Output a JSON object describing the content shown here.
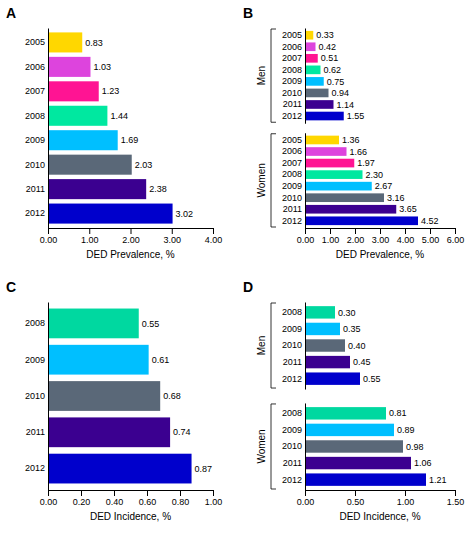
{
  "chart_data": [
    {
      "type": "bar",
      "orientation": "horizontal",
      "title": "A",
      "data_labels": true,
      "categories": [
        "2005",
        "2006",
        "2007",
        "2008",
        "2009",
        "2010",
        "2011",
        "2012"
      ],
      "values": [
        0.83,
        1.03,
        1.23,
        1.44,
        1.69,
        2.03,
        2.38,
        3.02
      ],
      "colors": [
        "#FFD700",
        "#DD44DD",
        "#FF1493",
        "#00E8A0",
        "#00BFFF",
        "#5A6878",
        "#3B0090",
        "#0000CC"
      ],
      "xlabel": "DED Prevalence, %",
      "xlim": [
        0,
        4.0
      ],
      "xticks": [
        {
          "value": 0,
          "label": "0.00"
        },
        {
          "value": 1,
          "label": "1.00"
        },
        {
          "value": 2,
          "label": "2.00"
        },
        {
          "value": 3,
          "label": "3.00"
        },
        {
          "value": 4,
          "label": "4.00"
        }
      ]
    },
    {
      "type": "bar",
      "orientation": "horizontal",
      "title": "B",
      "data_labels": true,
      "categories": [
        "2005",
        "2006",
        "2007",
        "2008",
        "2009",
        "2010",
        "2011",
        "2012"
      ],
      "series": [
        {
          "name": "Men",
          "values": [
            0.33,
            0.42,
            0.51,
            0.62,
            0.75,
            0.94,
            1.14,
            1.55
          ],
          "value_labels": [
            "0.33",
            "0.42",
            "0.51",
            "0.62",
            "0.75",
            "0.94",
            "1.14",
            "1.55"
          ]
        },
        {
          "name": "Women",
          "values": [
            1.36,
            1.66,
            1.97,
            2.3,
            2.67,
            3.16,
            3.65,
            4.52
          ],
          "value_labels": [
            "1.36",
            "1.66",
            "1.97",
            "2.30",
            "2.67",
            "3.16",
            "3.65",
            "4.52"
          ]
        }
      ],
      "colors": [
        "#FFD700",
        "#DD44DD",
        "#FF1493",
        "#00E8A0",
        "#00BFFF",
        "#5A6878",
        "#3B0090",
        "#0000CC"
      ],
      "xlabel": "DED Prevalence, %",
      "xlim": [
        0,
        6.0
      ],
      "xticks": [
        {
          "value": 0,
          "label": "0.00"
        },
        {
          "value": 1,
          "label": "1.00"
        },
        {
          "value": 2,
          "label": "2.00"
        },
        {
          "value": 3,
          "label": "3.00"
        },
        {
          "value": 4,
          "label": "4.00"
        },
        {
          "value": 5,
          "label": "5.00"
        },
        {
          "value": 6,
          "label": "6.00"
        }
      ]
    },
    {
      "type": "bar",
      "orientation": "horizontal",
      "title": "C",
      "data_labels": true,
      "categories": [
        "2008",
        "2009",
        "2010",
        "2011",
        "2012"
      ],
      "values": [
        0.55,
        0.61,
        0.68,
        0.74,
        0.87
      ],
      "colors": [
        "#00D8A0",
        "#00BFFF",
        "#5A6878",
        "#3B0090",
        "#0000CC"
      ],
      "xlabel": "DED Incidence, %",
      "xlim": [
        0,
        1.0
      ],
      "xticks": [
        {
          "value": 0,
          "label": "0.00"
        },
        {
          "value": 0.2,
          "label": "0.20"
        },
        {
          "value": 0.4,
          "label": "0.40"
        },
        {
          "value": 0.6,
          "label": "0.60"
        },
        {
          "value": 0.8,
          "label": "0.80"
        },
        {
          "value": 1,
          "label": "1.00"
        }
      ]
    },
    {
      "type": "bar",
      "orientation": "horizontal",
      "title": "D",
      "data_labels": true,
      "categories": [
        "2008",
        "2009",
        "2010",
        "2011",
        "2012"
      ],
      "series": [
        {
          "name": "Men",
          "values": [
            0.3,
            0.35,
            0.4,
            0.45,
            0.55
          ],
          "value_labels": [
            "0.30",
            "0.35",
            "0.40",
            "0.45",
            "0.55"
          ]
        },
        {
          "name": "Women",
          "values": [
            0.81,
            0.89,
            0.98,
            1.06,
            1.21
          ],
          "value_labels": [
            "0.81",
            "0.89",
            "0.98",
            "1.06",
            "1.21"
          ]
        }
      ],
      "colors": [
        "#00D8A0",
        "#00BFFF",
        "#5A6878",
        "#3B0090",
        "#0000CC"
      ],
      "xlabel": "DED Incidence, %",
      "xlim": [
        0,
        1.5
      ],
      "xticks": [
        {
          "value": 0,
          "label": "0.00"
        },
        {
          "value": 0.5,
          "label": "0.50"
        },
        {
          "value": 1,
          "label": "1.00"
        },
        {
          "value": 1.5,
          "label": "1.50"
        }
      ]
    }
  ]
}
